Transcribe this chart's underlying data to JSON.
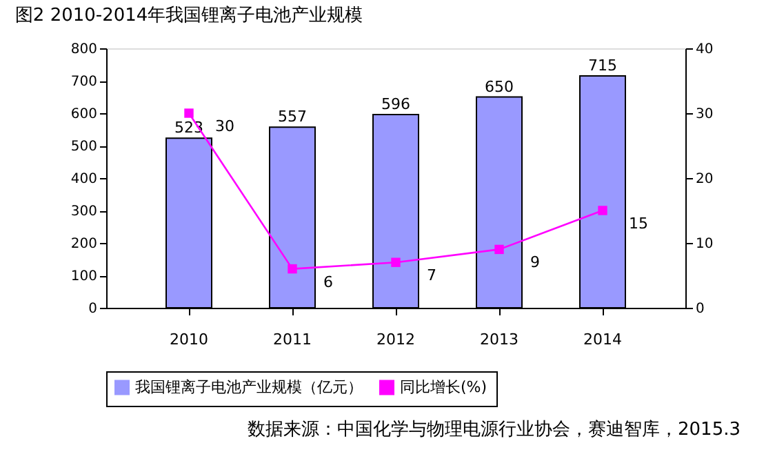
{
  "chart_data": {
    "type": "bar",
    "title": "图2 2010-2014年我国锂离子电池产业规模",
    "categories": [
      "2010",
      "2011",
      "2012",
      "2013",
      "2014"
    ],
    "series": [
      {
        "name": "我国锂离子电池产业规模（亿元）",
        "type": "bar",
        "color": "#9999ff",
        "values": [
          523,
          557,
          596,
          650,
          715
        ]
      },
      {
        "name": "同比增长(%)",
        "type": "line",
        "axis": "y2",
        "color": "#ff00ff",
        "marker": "square",
        "values": [
          30,
          6,
          7,
          9,
          15
        ]
      }
    ],
    "ylim": [
      0,
      800
    ],
    "yticks": [
      0,
      100,
      200,
      300,
      400,
      500,
      600,
      700,
      800
    ],
    "y2lim": [
      0,
      40
    ],
    "y2ticks": [
      0,
      10,
      20,
      30,
      40
    ],
    "data_labels": true,
    "grid": false,
    "legend": "bottom",
    "annotations": [
      "数据来源：中国化学与物理电源行业协会，赛迪智库，2015.3"
    ]
  }
}
